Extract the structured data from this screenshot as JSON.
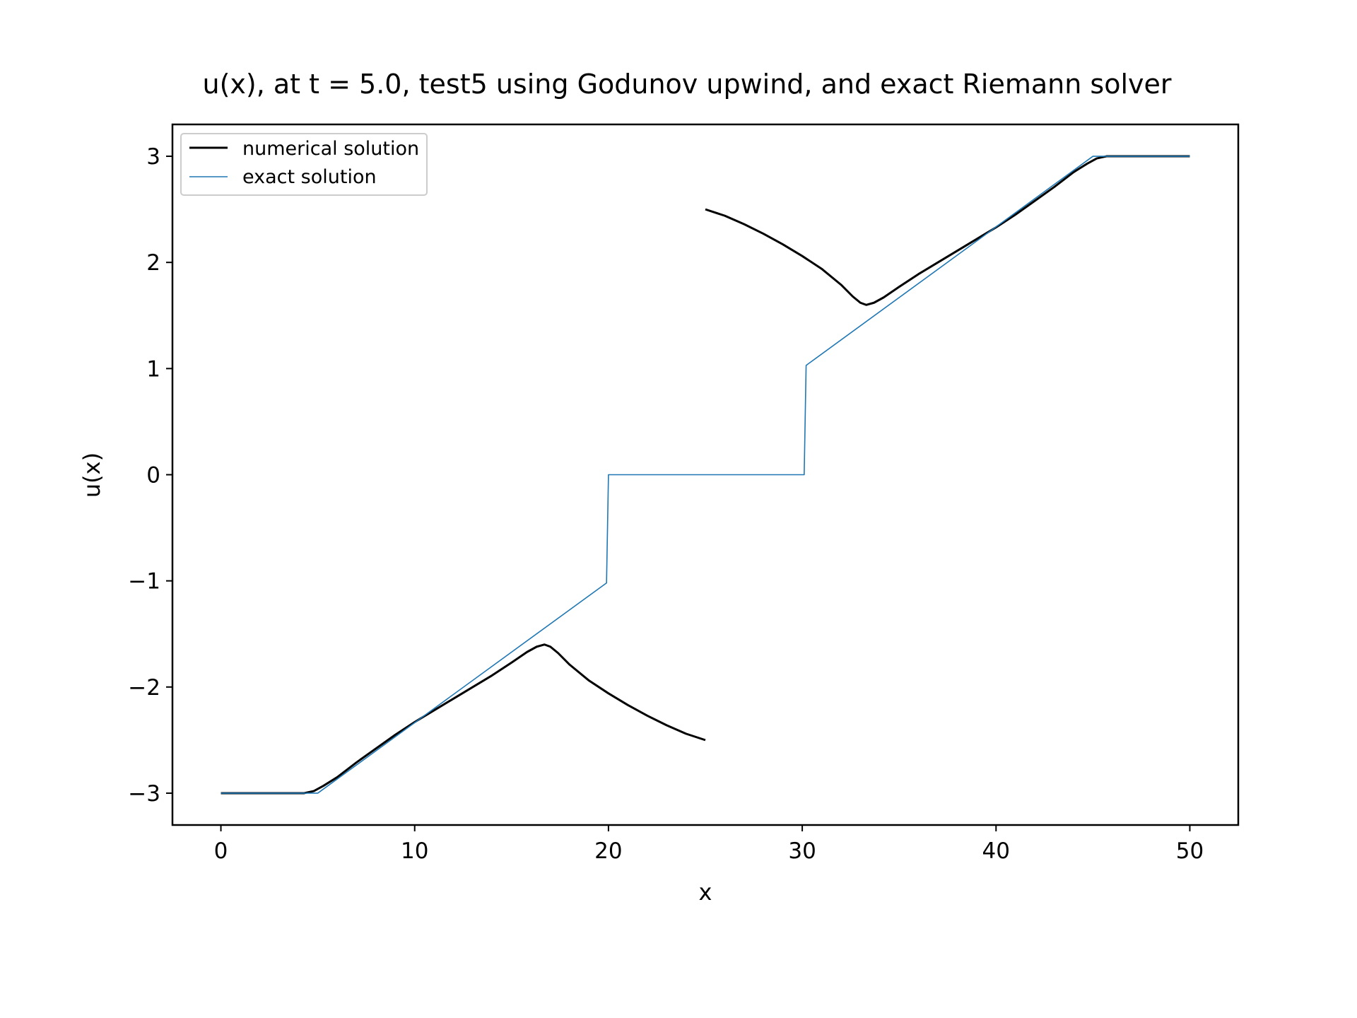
{
  "chart_data": {
    "type": "line",
    "title": "u(x), at t = 5.0, test5 using Godunov upwind, and exact Riemann solver",
    "xlabel": "x",
    "ylabel": "u(x)",
    "xlim": [
      -2.5,
      52.5
    ],
    "ylim": [
      -3.3,
      3.3
    ],
    "xticks": [
      0,
      10,
      20,
      30,
      40,
      50
    ],
    "xtick_labels": [
      "0",
      "10",
      "20",
      "30",
      "40",
      "50"
    ],
    "yticks": [
      3,
      2,
      1,
      0,
      -1,
      -2,
      -3
    ],
    "ytick_labels": [
      "3",
      "2",
      "1",
      "0",
      "−1",
      "−2",
      "−3"
    ],
    "legend_position": "upper left",
    "grid": false,
    "series": [
      {
        "name": "numerical solution",
        "color": "#000000",
        "segments": [
          {
            "x": [
              0,
              4.3,
              4.8,
              5.3,
              6.0,
              7.0,
              8.0,
              9.0,
              10.0,
              11.0,
              12.0,
              13.0,
              14.0,
              15.0,
              15.8,
              16.3,
              16.7,
              17.0,
              17.4,
              18.0,
              19.0,
              20.0,
              21.0,
              22.0,
              23.0,
              24.0,
              25.0
            ],
            "y": [
              -3.0,
              -3.0,
              -2.98,
              -2.93,
              -2.85,
              -2.71,
              -2.58,
              -2.45,
              -2.33,
              -2.22,
              -2.11,
              -2.0,
              -1.89,
              -1.77,
              -1.67,
              -1.62,
              -1.6,
              -1.62,
              -1.68,
              -1.79,
              -1.94,
              -2.06,
              -2.17,
              -2.27,
              -2.36,
              -2.44,
              -2.5
            ]
          },
          {
            "x": [
              25.0,
              26.0,
              27.0,
              28.0,
              29.0,
              30.0,
              31.0,
              32.0,
              32.6,
              33.0,
              33.3,
              33.7,
              34.2,
              35.0,
              36.0,
              37.0,
              38.0,
              39.0,
              40.0,
              41.0,
              42.0,
              43.0,
              44.0,
              44.7,
              45.2,
              45.7,
              46.2,
              50.0
            ],
            "y": [
              2.5,
              2.44,
              2.36,
              2.27,
              2.17,
              2.06,
              1.94,
              1.79,
              1.68,
              1.62,
              1.6,
              1.62,
              1.67,
              1.77,
              1.89,
              2.0,
              2.11,
              2.22,
              2.33,
              2.45,
              2.58,
              2.71,
              2.85,
              2.93,
              2.98,
              3.0,
              3.0,
              3.0
            ]
          }
        ]
      },
      {
        "name": "exact solution",
        "color": "#1f77b4",
        "segments": [
          {
            "x": [
              0,
              5.0,
              19.9,
              20.0,
              30.1,
              30.2,
              45.0,
              50.0
            ],
            "y": [
              -3.0,
              -3.0,
              -1.02,
              0.0,
              0.0,
              1.03,
              3.0,
              3.0
            ]
          }
        ]
      }
    ]
  }
}
